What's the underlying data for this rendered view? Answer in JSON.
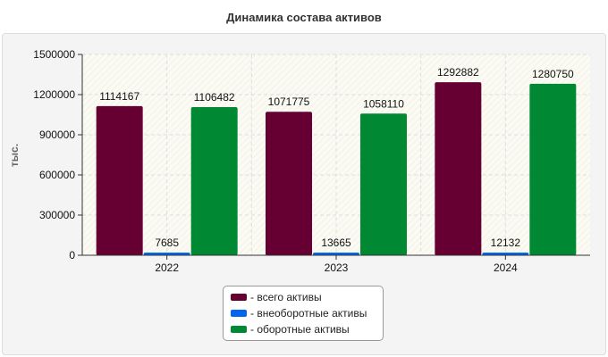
{
  "chart_data": {
    "type": "bar",
    "title": "Динамика состава активов",
    "ylabel": "тыс.",
    "xlabel": "",
    "categories": [
      "2022",
      "2023",
      "2024"
    ],
    "ylim": [
      0,
      1500000
    ],
    "yticks": [
      "0",
      "300000",
      "600000",
      "900000",
      "1200000",
      "1500000"
    ],
    "grid": true,
    "legend_position": "bottom",
    "series": [
      {
        "name": "- всего активы",
        "color": "#660033",
        "values": [
          1114167,
          1071775,
          1292882
        ],
        "labels": [
          "1114167",
          "1071775",
          "1292882"
        ]
      },
      {
        "name": "- внеоборотные активы",
        "color": "#0066ee",
        "values": [
          7685,
          13665,
          12132
        ],
        "labels": [
          "7685",
          "13665",
          "12132"
        ]
      },
      {
        "name": "- оборотные активы",
        "color": "#008833",
        "values": [
          1106482,
          1058110,
          1280750
        ],
        "labels": [
          "1106482",
          "1058110",
          "1280750"
        ]
      }
    ]
  }
}
